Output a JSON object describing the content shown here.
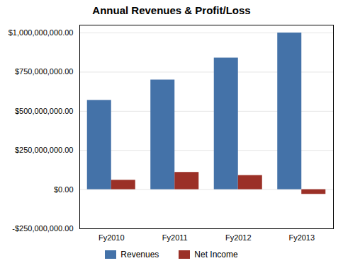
{
  "chart_data": {
    "type": "bar",
    "title": "Annual Revenues & Profit/Loss",
    "categories": [
      "Fy2010",
      "Fy2011",
      "Fy2012",
      "Fy2013"
    ],
    "series": [
      {
        "name": "Revenues",
        "color": "#4472a8",
        "values": [
          570000000,
          700000000,
          840000000,
          1000000000
        ]
      },
      {
        "name": "Net Income",
        "color": "#9b3027",
        "values": [
          60000000,
          110000000,
          90000000,
          -30000000
        ]
      }
    ],
    "ylim": [
      -250000000,
      1050000000
    ],
    "yticks": [
      {
        "value": -250000000,
        "label": "-$250,000,000.00"
      },
      {
        "value": 0,
        "label": "$0.00"
      },
      {
        "value": 250000000,
        "label": "$250,000,000.00"
      },
      {
        "value": 500000000,
        "label": "$500,000,000.00"
      },
      {
        "value": 750000000,
        "label": "$750,000,000.00"
      },
      {
        "value": 1000000000,
        "label": "$1,000,000,000.00"
      }
    ],
    "grid": true,
    "legend": "bottom"
  }
}
